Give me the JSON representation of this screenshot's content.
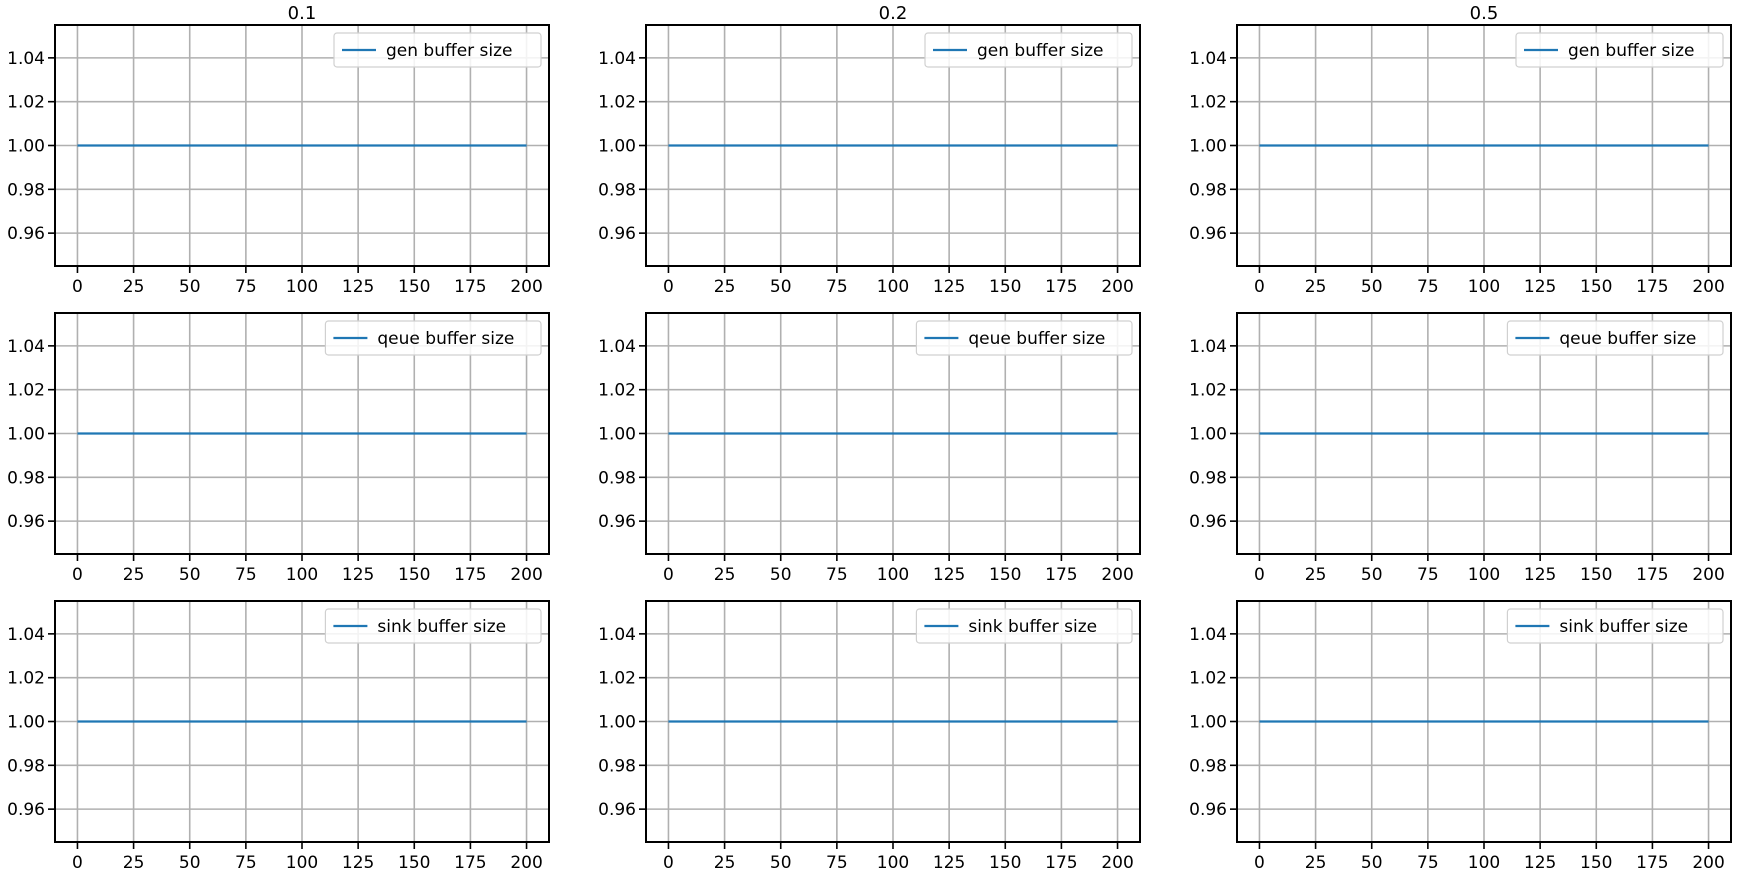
{
  "chart_data": {
    "type": "line",
    "layout": "3x3 grid of line subplots",
    "columns": [
      "0.1",
      "0.2",
      "0.5"
    ],
    "rows": [
      {
        "series_name": "gen buffer size"
      },
      {
        "series_name": "qeue buffer size"
      },
      {
        "series_name": "sink buffer size"
      }
    ],
    "x": [
      0,
      200
    ],
    "y": [
      1.0,
      1.0
    ],
    "xlim": [
      -10,
      210
    ],
    "ylim": [
      0.945,
      1.055
    ],
    "xticks": [
      0,
      25,
      50,
      75,
      100,
      125,
      150,
      175,
      200
    ],
    "yticks": [
      0.96,
      0.98,
      1.0,
      1.02,
      1.04
    ],
    "ytick_labels": [
      "0.96",
      "0.98",
      "1.00",
      "1.02",
      "1.04"
    ],
    "grid": true,
    "legend_placement": "upper right",
    "line_color": "#1f77b4",
    "grid_color": "#b0b0b0"
  }
}
